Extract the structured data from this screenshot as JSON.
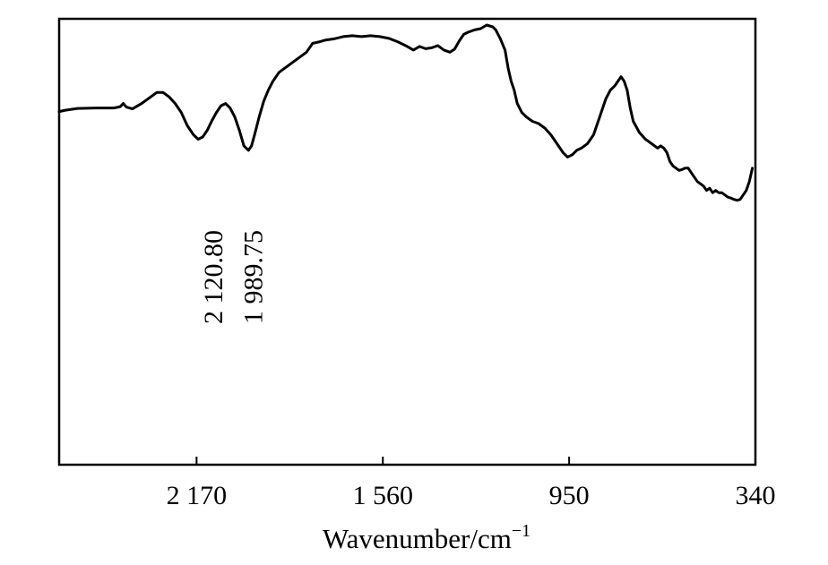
{
  "chart_data": {
    "type": "line",
    "title": "",
    "xlabel": "Wavenumber/cm",
    "xlabel_sup": "−1",
    "ylabel": "",
    "xlim": [
      2620,
      340
    ],
    "ylim": [
      0,
      100
    ],
    "x_reversed": true,
    "xticks": [
      2170,
      1560,
      950,
      340
    ],
    "xtick_labels": [
      "2 170",
      "1 560",
      "950",
      "340"
    ],
    "grid": false,
    "line_color": "#000000",
    "series": [
      {
        "x": [
          2620,
          2600,
          2560,
          2500,
          2440,
          2420,
          2410,
          2400,
          2380,
          2350,
          2320,
          2300,
          2280,
          2260,
          2240,
          2220,
          2200,
          2180,
          2165,
          2150,
          2135,
          2121,
          2105,
          2090,
          2075,
          2060,
          2045,
          2030,
          2015,
          2000,
          1990,
          1980,
          1965,
          1950,
          1935,
          1920,
          1900,
          1870,
          1840,
          1810,
          1790,
          1770,
          1750,
          1720,
          1690,
          1660,
          1630,
          1600,
          1570,
          1540,
          1510,
          1480,
          1460,
          1440,
          1420,
          1400,
          1380,
          1360,
          1340,
          1325,
          1310,
          1295,
          1280,
          1260,
          1240,
          1220,
          1200,
          1190,
          1175,
          1160,
          1150,
          1140,
          1130,
          1120,
          1105,
          1090,
          1070,
          1050,
          1030,
          1010,
          990,
          970,
          955,
          940,
          925,
          910,
          890,
          870,
          850,
          830,
          815,
          800,
          790,
          780,
          770,
          760,
          750,
          740,
          720,
          700,
          680,
          660,
          650,
          640,
          630,
          620,
          610,
          600,
          590,
          580,
          570,
          560,
          550,
          540,
          530,
          520,
          510,
          500,
          490,
          480,
          470,
          460,
          450,
          440,
          430,
          420,
          410,
          400,
          390,
          380,
          370,
          360,
          350
        ],
        "values": [
          79.2,
          79.5,
          79.9,
          80.0,
          80.0,
          80.3,
          81.0,
          80.2,
          79.8,
          81.0,
          82.5,
          83.5,
          83.5,
          82.5,
          81.0,
          79.0,
          76.0,
          74.0,
          73.0,
          73.5,
          75.0,
          77.0,
          79.0,
          80.5,
          81.0,
          80.0,
          78.0,
          75.0,
          71.5,
          70.5,
          71.5,
          74.0,
          78.0,
          81.5,
          84.0,
          86.0,
          88.0,
          89.5,
          91.0,
          92.5,
          94.5,
          94.8,
          95.2,
          95.5,
          96.0,
          96.2,
          96.0,
          96.2,
          96.0,
          95.6,
          94.8,
          93.8,
          93.0,
          93.8,
          93.3,
          93.5,
          94.0,
          93.0,
          92.5,
          93.2,
          95.0,
          96.5,
          97.0,
          97.5,
          97.8,
          98.6,
          98.2,
          97.5,
          95.5,
          93.0,
          89.0,
          86.0,
          84.0,
          81.0,
          79.0,
          78.0,
          77.0,
          76.5,
          75.5,
          74.0,
          72.0,
          70.0,
          69.0,
          69.5,
          70.5,
          71.0,
          72.0,
          74.0,
          78.0,
          82.0,
          84.0,
          85.0,
          86.0,
          87.0,
          86.0,
          84.0,
          80.0,
          77.0,
          74.5,
          73.0,
          72.0,
          71.0,
          71.5,
          71.0,
          70.0,
          68.0,
          67.0,
          66.5,
          66.0,
          66.2,
          66.5,
          66.5,
          65.5,
          64.5,
          63.5,
          63.0,
          62.5,
          61.5,
          62.0,
          61.0,
          61.5,
          61.0,
          61.0,
          60.5,
          60.0,
          59.8,
          59.5,
          59.3,
          59.5,
          60.5,
          61.5,
          63.5,
          66.5
        ]
      }
    ],
    "annotations": [
      {
        "x": 2121,
        "text": "2 120.80"
      },
      {
        "x": 1990,
        "text": "1 989.75"
      }
    ]
  }
}
